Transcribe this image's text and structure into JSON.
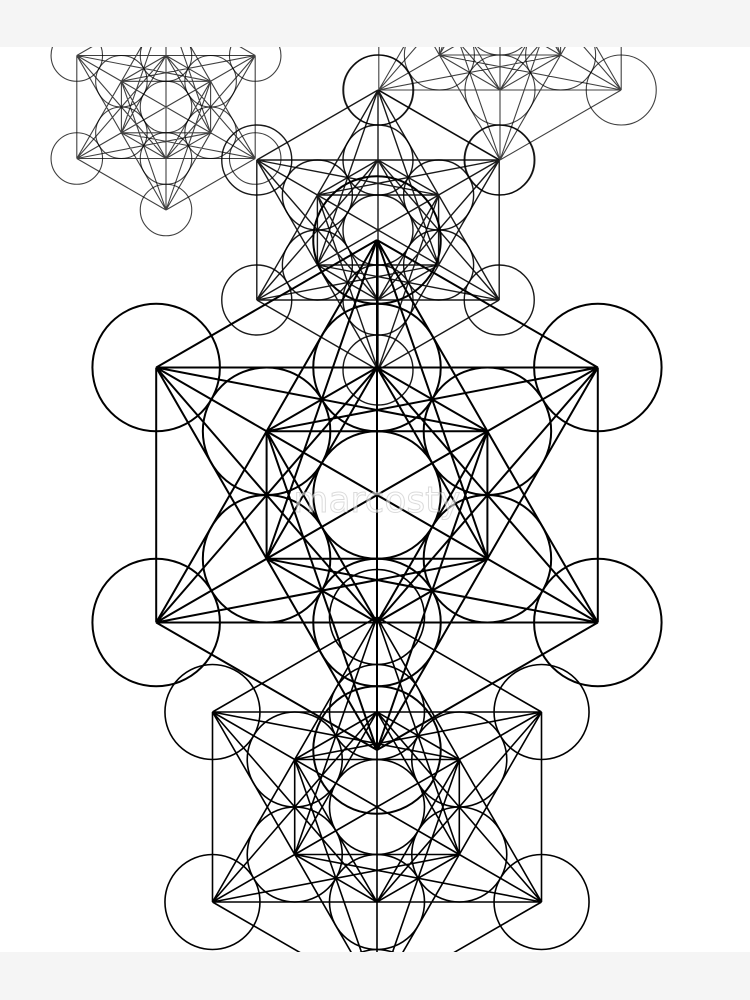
{
  "watermark": "marcosty"
}
